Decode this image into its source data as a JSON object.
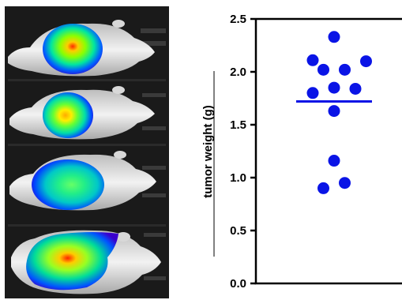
{
  "panel_left": {
    "image": "bioluminescence-mouse-images",
    "mice_count": 4
  },
  "chart_data": {
    "type": "scatter",
    "title": "",
    "xlabel": "",
    "ylabel": "tumor weight (g)",
    "ylim": [
      0,
      2.5
    ],
    "yticks": [
      {
        "value": 0.0,
        "label": "0.0"
      },
      {
        "value": 0.5,
        "label": "0.5"
      },
      {
        "value": 1.0,
        "label": "1.0"
      },
      {
        "value": 1.5,
        "label": "1.5"
      },
      {
        "value": 2.0,
        "label": "2.0"
      },
      {
        "value": 2.5,
        "label": "2.5"
      }
    ],
    "grid": false,
    "legend": "none",
    "marker_color": "#0a14e6",
    "mean_line_color": "#0a14e6",
    "mean": 1.72,
    "points": [
      {
        "x": 0,
        "y": 2.33
      },
      {
        "x": -2,
        "y": 2.11
      },
      {
        "x": -1,
        "y": 2.02
      },
      {
        "x": 1,
        "y": 2.02
      },
      {
        "x": 3,
        "y": 2.1
      },
      {
        "x": 0,
        "y": 1.85
      },
      {
        "x": -2,
        "y": 1.8
      },
      {
        "x": 2,
        "y": 1.84
      },
      {
        "x": 0,
        "y": 1.63
      },
      {
        "x": 0,
        "y": 1.16
      },
      {
        "x": -1,
        "y": 0.9
      },
      {
        "x": 1,
        "y": 0.95
      }
    ]
  }
}
